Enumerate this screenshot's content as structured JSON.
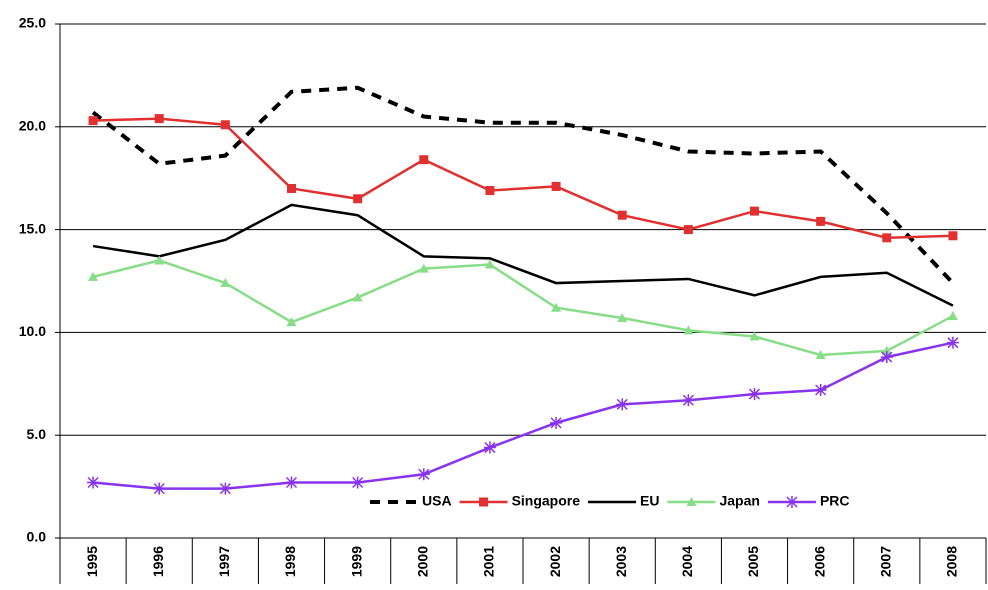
{
  "chart_data": {
    "type": "line",
    "categories": [
      "1995",
      "1996",
      "1997",
      "1998",
      "1999",
      "2000",
      "2001",
      "2002",
      "2003",
      "2004",
      "2005",
      "2006",
      "2007",
      "2008"
    ],
    "series": [
      {
        "name": "USA",
        "color": "#000000",
        "dashed": true,
        "marker": "none",
        "values": [
          20.7,
          18.2,
          18.6,
          21.7,
          21.9,
          20.5,
          20.2,
          20.2,
          19.6,
          18.8,
          18.7,
          18.8,
          15.8,
          12.4
        ]
      },
      {
        "name": "Singapore",
        "color": "#e03030",
        "marker": "square",
        "values": [
          20.3,
          20.4,
          20.1,
          17.0,
          16.5,
          18.4,
          16.9,
          17.1,
          15.7,
          15.0,
          15.9,
          15.4,
          14.6,
          14.7
        ]
      },
      {
        "name": "EU",
        "color": "#000000",
        "marker": "none",
        "values": [
          14.2,
          13.7,
          14.5,
          16.2,
          15.7,
          13.7,
          13.6,
          12.4,
          12.5,
          12.6,
          11.8,
          12.7,
          12.9,
          11.3
        ]
      },
      {
        "name": "Japan",
        "color": "#88dd88",
        "marker": "triangle",
        "values": [
          12.7,
          13.5,
          12.4,
          10.5,
          11.7,
          13.1,
          13.3,
          11.2,
          10.7,
          10.1,
          9.8,
          8.9,
          9.1,
          10.8
        ]
      },
      {
        "name": "PRC",
        "color": "#8833ee",
        "marker": "star",
        "values": [
          2.7,
          2.4,
          2.4,
          2.7,
          2.7,
          3.1,
          4.4,
          5.6,
          6.5,
          6.7,
          7.0,
          7.2,
          8.8,
          9.5
        ]
      }
    ],
    "ylim": [
      0,
      25
    ],
    "yticks": [
      {
        "value": 0,
        "label": "0.0"
      },
      {
        "value": 5,
        "label": "5.0"
      },
      {
        "value": 10,
        "label": "10.0"
      },
      {
        "value": 15,
        "label": "15.0"
      },
      {
        "value": 20,
        "label": "20.0"
      },
      {
        "value": 25,
        "label": "25.0"
      }
    ],
    "grid": true,
    "legend": "bottom"
  }
}
